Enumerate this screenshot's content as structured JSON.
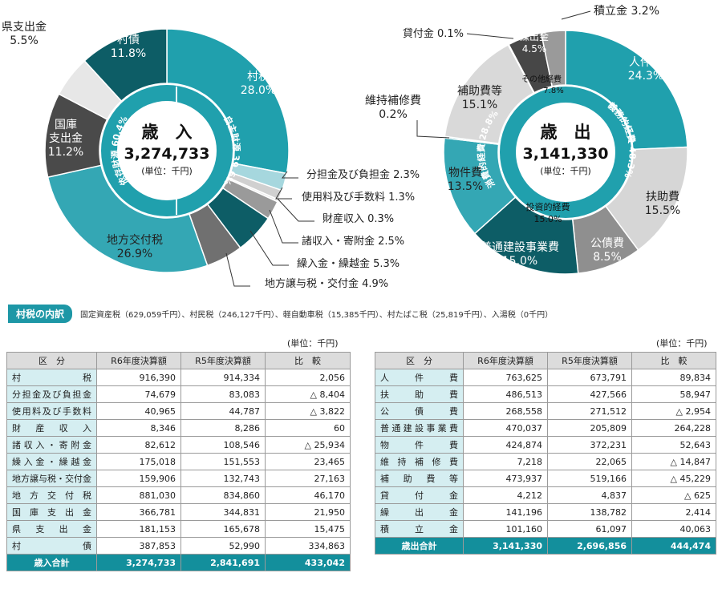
{
  "colors": {
    "teal": "#20a0ad",
    "dark_teal": "#0d5d66",
    "gray": "#8f8f8f",
    "light_gray": "#d6d6d6",
    "dark_gray": "#4a4a4a"
  },
  "chart_data": [
    {
      "type": "pie",
      "title": "歳　入",
      "total": "3,274,733",
      "unit": "(単位：千円)",
      "inner_ring": [
        {
          "label": "自主財源 39.6%",
          "value": 39.6
        },
        {
          "label": "依存財源 60.4%",
          "value": 60.4
        }
      ],
      "slices": [
        {
          "name": "村税",
          "pct_label": "28.0%",
          "value": 28.0
        },
        {
          "name": "分担金及び負担金",
          "pct_label": "2.3%",
          "value": 2.3
        },
        {
          "name": "使用料及び手数料",
          "pct_label": "1.3%",
          "value": 1.3
        },
        {
          "name": "財産収入",
          "pct_label": "0.3%",
          "value": 0.3
        },
        {
          "name": "諸収入・寄附金",
          "pct_label": "2.5%",
          "value": 2.5
        },
        {
          "name": "繰入金・繰越金",
          "pct_label": "5.3%",
          "value": 5.3
        },
        {
          "name": "地方譲与税・交付金",
          "pct_label": "4.9%",
          "value": 4.9
        },
        {
          "name": "地方交付税",
          "pct_label": "26.9%",
          "value": 26.9
        },
        {
          "name": "国庫支出金",
          "pct_label": "11.2%",
          "value": 11.2
        },
        {
          "name": "県支出金",
          "pct_label": "5.5%",
          "value": 5.5
        },
        {
          "name": "村債",
          "pct_label": "11.8%",
          "value": 11.8
        }
      ]
    },
    {
      "type": "pie",
      "title": "歳　出",
      "total": "3,141,330",
      "unit": "(単位：千円)",
      "inner_ring": [
        {
          "label": "義務的経費 48.3%",
          "value": 48.3
        },
        {
          "label": "投資的経費 15.0%",
          "value": 15.0
        },
        {
          "label": "消費的経費 28.8%",
          "value": 28.8
        },
        {
          "label": "その他経費 7.8%",
          "value": 7.8
        }
      ],
      "slices": [
        {
          "name": "人件費",
          "pct_label": "24.3%",
          "value": 24.3
        },
        {
          "name": "扶助費",
          "pct_label": "15.5%",
          "value": 15.5
        },
        {
          "name": "公債費",
          "pct_label": "8.5%",
          "value": 8.5
        },
        {
          "name": "普通建設事業費",
          "pct_label": "15.0%",
          "value": 15.0
        },
        {
          "name": "物件費",
          "pct_label": "13.5%",
          "value": 13.5
        },
        {
          "name": "維持補修費",
          "pct_label": "0.2%",
          "value": 0.2
        },
        {
          "name": "補助費等",
          "pct_label": "15.1%",
          "value": 15.1
        },
        {
          "name": "貸付金",
          "pct_label": "0.1%",
          "value": 0.1
        },
        {
          "name": "繰出金",
          "pct_label": "4.5%",
          "value": 4.5
        },
        {
          "name": "積立金",
          "pct_label": "3.2%",
          "value": 3.2
        }
      ]
    }
  ],
  "breakdown": {
    "badge": "村税の内訳",
    "text": "固定資産税（629,059千円）、村民税（246,127千円）、軽自動車税（15,385千円）、村たばこ税（25,819千円）、入湯税（0千円）"
  },
  "unit_note": "(単位：千円)",
  "revenue_table": {
    "headers": [
      "区　分",
      "R6年度決算額",
      "R5年度決算額",
      "比　較"
    ],
    "rows": [
      [
        "村税",
        "916,390",
        "914,334",
        "2,056"
      ],
      [
        "分担金及び負担金",
        "74,679",
        "83,083",
        "△ 8,404"
      ],
      [
        "使用料及び手数料",
        "40,965",
        "44,787",
        "△ 3,822"
      ],
      [
        "財産収入",
        "8,346",
        "8,286",
        "60"
      ],
      [
        "諸収入・寄附金",
        "82,612",
        "108,546",
        "△ 25,934"
      ],
      [
        "繰入金・繰越金",
        "175,018",
        "151,553",
        "23,465"
      ],
      [
        "地方譲与税・交付金",
        "159,906",
        "132,743",
        "27,163"
      ],
      [
        "地方交付税",
        "881,030",
        "834,860",
        "46,170"
      ],
      [
        "国庫支出金",
        "366,781",
        "344,831",
        "21,950"
      ],
      [
        "県支出金",
        "181,153",
        "165,678",
        "15,475"
      ],
      [
        "村債",
        "387,853",
        "52,990",
        "334,863"
      ]
    ],
    "total": [
      "歳入合計",
      "3,274,733",
      "2,841,691",
      "433,042"
    ]
  },
  "expenditure_table": {
    "headers": [
      "区　分",
      "R6年度決算額",
      "R5年度決算額",
      "比　較"
    ],
    "rows": [
      [
        "人件費",
        "763,625",
        "673,791",
        "89,834"
      ],
      [
        "扶助費",
        "486,513",
        "427,566",
        "58,947"
      ],
      [
        "公債費",
        "268,558",
        "271,512",
        "△ 2,954"
      ],
      [
        "普通建設事業費",
        "470,037",
        "205,809",
        "264,228"
      ],
      [
        "物件費",
        "424,874",
        "372,231",
        "52,643"
      ],
      [
        "維持補修費",
        "7,218",
        "22,065",
        "△ 14,847"
      ],
      [
        "補助費等",
        "473,937",
        "519,166",
        "△ 45,229"
      ],
      [
        "貸付金",
        "4,212",
        "4,837",
        "△ 625"
      ],
      [
        "繰出金",
        "141,196",
        "138,782",
        "2,414"
      ],
      [
        "積立金",
        "101,160",
        "61,097",
        "40,063"
      ]
    ],
    "total": [
      "歳出合計",
      "3,141,330",
      "2,696,856",
      "444,474"
    ]
  }
}
